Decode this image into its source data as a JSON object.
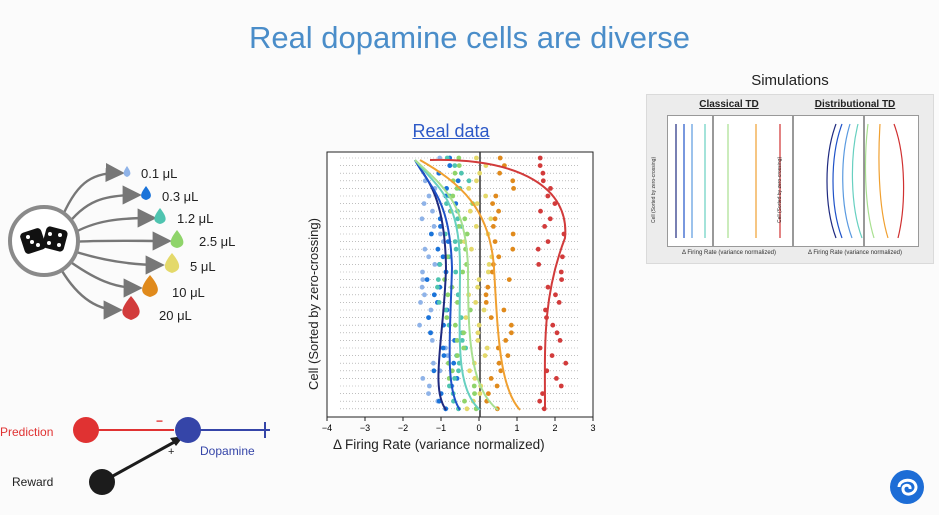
{
  "title": "Real dopamine cells are diverse",
  "simulations": {
    "heading": "Simulations",
    "left_title": "Classical TD",
    "right_title": "Distributional TD",
    "y_label": "Cell (Sorted by zero-crossing)",
    "x_label": "Δ Firing Rate (variance normalized)"
  },
  "real_data": {
    "title": "Real data",
    "y_label": "Cell (Sorted by zero-crossing)",
    "x_label": "Δ Firing Rate (variance normalized)",
    "x_ticks": [
      "−4",
      "−3",
      "−2",
      "−1",
      "0",
      "1",
      "2",
      "3"
    ]
  },
  "rewards": [
    {
      "label": "0.1 μL",
      "color": "#8fb3e8"
    },
    {
      "label": "0.3 μL",
      "color": "#1a73d9"
    },
    {
      "label": "1.2 μL",
      "color": "#4fc4b0"
    },
    {
      "label": "2.5 μL",
      "color": "#8fd46a"
    },
    {
      "label": "5 μL",
      "color": "#e4d96a"
    },
    {
      "label": "10 μL",
      "color": "#e08a1c"
    },
    {
      "label": "20 μL",
      "color": "#d23b3b"
    }
  ],
  "circuit": {
    "prediction": "Prediction",
    "dopamine": "Dopamine",
    "reward": "Reward",
    "minus": "−",
    "plus": "+",
    "prediction_color": "#e03232",
    "dopamine_color": "#3545a8",
    "reward_color": "#1c1c1c"
  },
  "logo": "deepmind-logo"
}
